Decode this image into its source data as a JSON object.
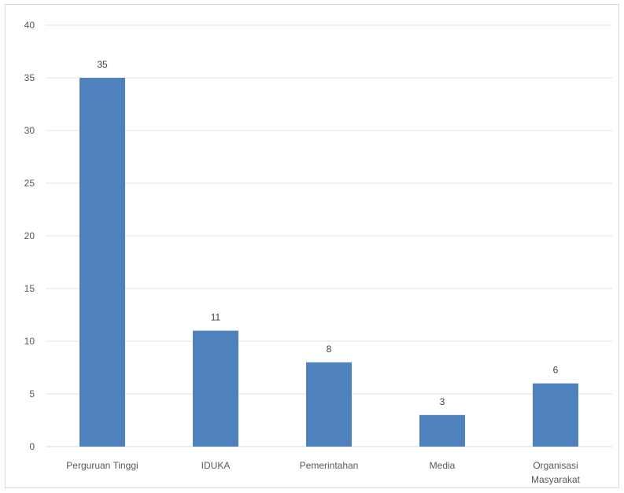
{
  "chart_data": {
    "type": "bar",
    "title": "",
    "xlabel": "",
    "ylabel": "",
    "categories": [
      [
        "Perguruan Tinggi"
      ],
      [
        "IDUKA"
      ],
      [
        "Pemerintahan"
      ],
      [
        "Media"
      ],
      [
        "Organisasi",
        "Masyarakat"
      ]
    ],
    "values": [
      35,
      11,
      8,
      3,
      6
    ],
    "ylim": [
      0,
      40
    ],
    "yticks": [
      0,
      5,
      10,
      15,
      20,
      25,
      30,
      35,
      40
    ],
    "grid": true,
    "legend": "none",
    "data_labels": true,
    "bar_color": "#4f81bd"
  }
}
